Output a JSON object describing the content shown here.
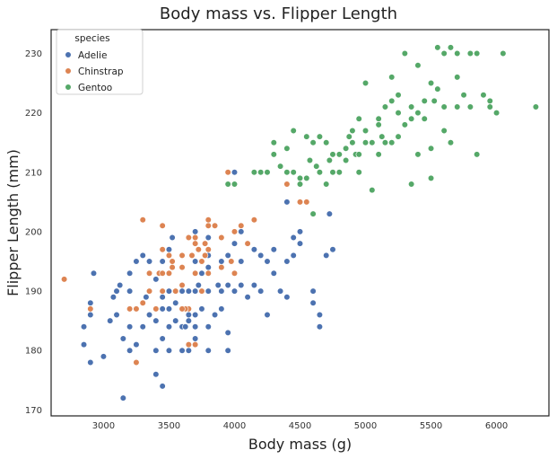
{
  "chart_data": {
    "type": "scatter",
    "title": "Body mass vs. Flipper Length",
    "xlabel": "Body mass (g)",
    "ylabel": "Flipper Length (mm)",
    "xlim": [
      2600,
      6400
    ],
    "ylim": [
      169,
      234
    ],
    "xticks": [
      3000,
      3500,
      4000,
      4500,
      5000,
      5500,
      6000
    ],
    "yticks": [
      170,
      180,
      190,
      200,
      210,
      220,
      230
    ],
    "grid": false,
    "legend": {
      "title": "species",
      "position": "top-left"
    },
    "series": [
      {
        "name": "Adelie",
        "color": "#4C72B0",
        "points": [
          [
            2850,
            181
          ],
          [
            2850,
            184
          ],
          [
            2900,
            178
          ],
          [
            2900,
            186
          ],
          [
            2900,
            188
          ],
          [
            2925,
            193
          ],
          [
            3000,
            179
          ],
          [
            3050,
            185
          ],
          [
            3075,
            189
          ],
          [
            3100,
            186
          ],
          [
            3100,
            190
          ],
          [
            3125,
            191
          ],
          [
            3150,
            172
          ],
          [
            3150,
            182
          ],
          [
            3200,
            180
          ],
          [
            3200,
            184
          ],
          [
            3200,
            187
          ],
          [
            3200,
            190
          ],
          [
            3200,
            193
          ],
          [
            3250,
            195
          ],
          [
            3250,
            181
          ],
          [
            3300,
            184
          ],
          [
            3300,
            188
          ],
          [
            3300,
            196
          ],
          [
            3325,
            189
          ],
          [
            3350,
            186
          ],
          [
            3350,
            190
          ],
          [
            3350,
            195
          ],
          [
            3400,
            176
          ],
          [
            3400,
            180
          ],
          [
            3400,
            185
          ],
          [
            3400,
            187
          ],
          [
            3400,
            192
          ],
          [
            3425,
            193
          ],
          [
            3450,
            174
          ],
          [
            3450,
            182
          ],
          [
            3450,
            187
          ],
          [
            3450,
            189
          ],
          [
            3450,
            195
          ],
          [
            3500,
            180
          ],
          [
            3500,
            184
          ],
          [
            3500,
            187
          ],
          [
            3500,
            190
          ],
          [
            3500,
            193
          ],
          [
            3500,
            197
          ],
          [
            3525,
            199
          ],
          [
            3550,
            185
          ],
          [
            3550,
            188
          ],
          [
            3550,
            190
          ],
          [
            3600,
            180
          ],
          [
            3600,
            184
          ],
          [
            3600,
            190
          ],
          [
            3600,
            191
          ],
          [
            3625,
            184
          ],
          [
            3650,
            180
          ],
          [
            3650,
            185
          ],
          [
            3650,
            186
          ],
          [
            3650,
            190
          ],
          [
            3700,
            182
          ],
          [
            3700,
            184
          ],
          [
            3700,
            186
          ],
          [
            3700,
            190
          ],
          [
            3700,
            195
          ],
          [
            3700,
            200
          ],
          [
            3725,
            191
          ],
          [
            3750,
            187
          ],
          [
            3750,
            190
          ],
          [
            3750,
            193
          ],
          [
            3800,
            180
          ],
          [
            3800,
            184
          ],
          [
            3800,
            190
          ],
          [
            3800,
            194
          ],
          [
            3800,
            196
          ],
          [
            3800,
            199
          ],
          [
            3850,
            186
          ],
          [
            3875,
            191
          ],
          [
            3900,
            187
          ],
          [
            3900,
            190
          ],
          [
            3900,
            195
          ],
          [
            3950,
            180
          ],
          [
            3950,
            183
          ],
          [
            3950,
            191
          ],
          [
            3950,
            196
          ],
          [
            4000,
            190
          ],
          [
            4000,
            193
          ],
          [
            4000,
            198
          ],
          [
            4050,
            195
          ],
          [
            4050,
            200
          ],
          [
            4100,
            189
          ],
          [
            4150,
            191
          ],
          [
            4150,
            197
          ],
          [
            4200,
            190
          ],
          [
            4200,
            196
          ],
          [
            4250,
            186
          ],
          [
            4250,
            195
          ],
          [
            4300,
            193
          ],
          [
            4300,
            197
          ],
          [
            4350,
            190
          ],
          [
            4400,
            189
          ],
          [
            4400,
            195
          ],
          [
            4450,
            196
          ],
          [
            4500,
            198
          ],
          [
            4500,
            200
          ],
          [
            4600,
            188
          ],
          [
            4600,
            190
          ],
          [
            4650,
            184
          ],
          [
            4650,
            186
          ],
          [
            4700,
            196
          ],
          [
            4750,
            197
          ],
          [
            4400,
            205
          ],
          [
            4000,
            210
          ],
          [
            4725,
            203
          ],
          [
            4450,
            199
          ],
          [
            4050,
            191
          ]
        ]
      },
      {
        "name": "Chinstrap",
        "color": "#DD8452",
        "points": [
          [
            2700,
            192
          ],
          [
            2900,
            187
          ],
          [
            3250,
            187
          ],
          [
            3250,
            178
          ],
          [
            3300,
            188
          ],
          [
            3350,
            193
          ],
          [
            3400,
            187
          ],
          [
            3425,
            193
          ],
          [
            3450,
            197
          ],
          [
            3450,
            201
          ],
          [
            3450,
            193
          ],
          [
            3500,
            193
          ],
          [
            3500,
            196
          ],
          [
            3525,
            194
          ],
          [
            3550,
            190
          ],
          [
            3600,
            191
          ],
          [
            3600,
            194
          ],
          [
            3650,
            187
          ],
          [
            3650,
            181
          ],
          [
            3675,
            196
          ],
          [
            3700,
            193
          ],
          [
            3700,
            199
          ],
          [
            3700,
            198
          ],
          [
            3725,
            197
          ],
          [
            3750,
            195
          ],
          [
            3775,
            198
          ],
          [
            3800,
            193
          ],
          [
            3800,
            201
          ],
          [
            3850,
            201
          ],
          [
            3900,
            199
          ],
          [
            3950,
            210
          ],
          [
            4000,
            200
          ],
          [
            4050,
            201
          ],
          [
            4100,
            198
          ],
          [
            4150,
            202
          ],
          [
            4400,
            208
          ],
          [
            4500,
            205
          ],
          [
            4550,
            205
          ],
          [
            4800,
            210
          ],
          [
            3650,
            199
          ],
          [
            3300,
            202
          ],
          [
            3800,
            202
          ],
          [
            3525,
            195
          ],
          [
            3775,
            196
          ],
          [
            3975,
            195
          ],
          [
            3625,
            187
          ],
          [
            3700,
            181
          ],
          [
            3450,
            190
          ],
          [
            3200,
            187
          ],
          [
            3350,
            190
          ],
          [
            3600,
            187
          ],
          [
            3750,
            190
          ],
          [
            3900,
            194
          ],
          [
            4000,
            193
          ],
          [
            3600,
            196
          ],
          [
            3800,
            197
          ]
        ]
      },
      {
        "name": "Gentoo",
        "color": "#55A868",
        "points": [
          [
            3950,
            208
          ],
          [
            4000,
            208
          ],
          [
            4150,
            210
          ],
          [
            4200,
            210
          ],
          [
            4250,
            210
          ],
          [
            4300,
            213
          ],
          [
            4350,
            211
          ],
          [
            4400,
            210
          ],
          [
            4450,
            217
          ],
          [
            4500,
            208
          ],
          [
            4550,
            209
          ],
          [
            4600,
            203
          ],
          [
            4650,
            210
          ],
          [
            4700,
            208
          ],
          [
            4750,
            213
          ],
          [
            4800,
            210
          ],
          [
            4850,
            212
          ],
          [
            4900,
            217
          ],
          [
            4950,
            219
          ],
          [
            5000,
            217
          ],
          [
            5050,
            207
          ],
          [
            5100,
            219
          ],
          [
            5150,
            221
          ],
          [
            5200,
            215
          ],
          [
            5250,
            220
          ],
          [
            5300,
            230
          ],
          [
            5350,
            208
          ],
          [
            5400,
            220
          ],
          [
            5450,
            222
          ],
          [
            5500,
            209
          ],
          [
            5550,
            231
          ],
          [
            5600,
            230
          ],
          [
            5650,
            231
          ],
          [
            5700,
            230
          ],
          [
            5800,
            230
          ],
          [
            5850,
            213
          ],
          [
            5950,
            221
          ],
          [
            6000,
            220
          ],
          [
            6050,
            230
          ],
          [
            6300,
            221
          ],
          [
            4300,
            215
          ],
          [
            4400,
            214
          ],
          [
            4450,
            210
          ],
          [
            4500,
            209
          ],
          [
            4550,
            216
          ],
          [
            4575,
            212
          ],
          [
            4600,
            215
          ],
          [
            4625,
            211
          ],
          [
            4650,
            216
          ],
          [
            4700,
            215
          ],
          [
            4725,
            212
          ],
          [
            4750,
            210
          ],
          [
            4800,
            213
          ],
          [
            4850,
            214
          ],
          [
            4875,
            216
          ],
          [
            4900,
            215
          ],
          [
            4925,
            213
          ],
          [
            4950,
            213
          ],
          [
            5000,
            215
          ],
          [
            5050,
            215
          ],
          [
            5100,
            218
          ],
          [
            5125,
            216
          ],
          [
            5150,
            215
          ],
          [
            5200,
            222
          ],
          [
            5250,
            216
          ],
          [
            5300,
            218
          ],
          [
            5350,
            219
          ],
          [
            5400,
            213
          ],
          [
            5450,
            219
          ],
          [
            5500,
            214
          ],
          [
            5525,
            222
          ],
          [
            5550,
            224
          ],
          [
            5600,
            221
          ],
          [
            5650,
            215
          ],
          [
            5700,
            221
          ],
          [
            5750,
            223
          ],
          [
            5800,
            221
          ],
          [
            5850,
            230
          ],
          [
            5900,
            223
          ],
          [
            5950,
            222
          ],
          [
            5000,
            225
          ],
          [
            5200,
            226
          ],
          [
            5500,
            225
          ],
          [
            5400,
            228
          ],
          [
            5700,
            226
          ],
          [
            5250,
            223
          ],
          [
            5100,
            213
          ],
          [
            4950,
            210
          ],
          [
            5350,
            221
          ],
          [
            5600,
            217
          ]
        ]
      }
    ]
  }
}
